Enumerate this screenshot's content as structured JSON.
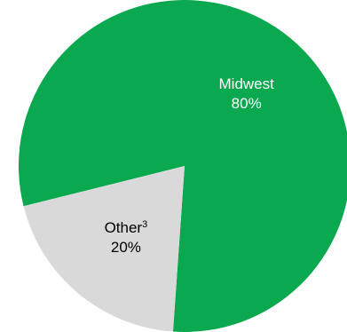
{
  "chart_data": {
    "type": "pie",
    "title": "",
    "slices": [
      {
        "label": "Midwest",
        "footnote": "",
        "value": 80,
        "value_label": "80%",
        "color": "#0aa84f",
        "label_color": "#ffffff"
      },
      {
        "label": "Other",
        "footnote": "3",
        "value": 20,
        "value_label": "20%",
        "color": "#d9d9d9",
        "label_color": "#000000"
      }
    ],
    "start_angle_deg": 256,
    "direction": "clockwise",
    "legend": "none"
  }
}
